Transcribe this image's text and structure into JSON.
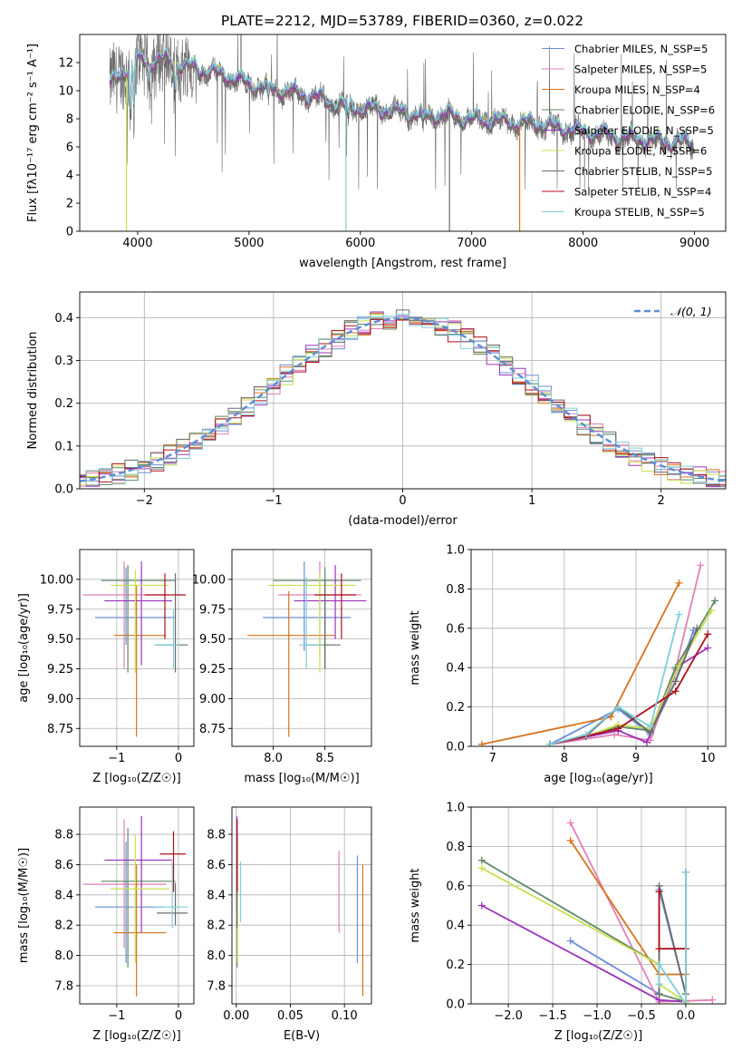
{
  "figure_title": "PLATE=2212, MJD=53789, FIBERID=0360, z=0.022",
  "chart_data": [
    {
      "id": "spectrum",
      "type": "line",
      "xlabel": "wavelength [Angstrom, rest frame]",
      "ylabel": "Flux [fλ10⁻¹⁷ erg cm⁻² s⁻¹ A⁻¹]",
      "xlim": [
        3480,
        9280
      ],
      "ylim": [
        0,
        14
      ],
      "xticks": [
        "4000",
        "5000",
        "6000",
        "7000",
        "8000",
        "9000"
      ],
      "yticks": [
        "0",
        "2",
        "4",
        "6",
        "8",
        "10",
        "12"
      ],
      "grid": false,
      "legend_position": "top-right",
      "legend": [
        "Chabrier MILES, N_SSP=5",
        "Salpeter MILES, N_SSP=5",
        "Kroupa MILES, N_SSP=4",
        "Chabrier ELODIE, N_SSP=6",
        "Salpeter ELODIE, N_SSP=5",
        "Kroupa ELODIE, N_SSP=6",
        "Chabrier STELIB, N_SSP=5",
        "Salpeter STELIB, N_SSP=4",
        "Kroupa STELIB, N_SSP=5"
      ],
      "continuum": {
        "wavelength": [
          3750,
          3900,
          4000,
          4100,
          4200,
          4400,
          4600,
          4800,
          5000,
          5200,
          5400,
          5600,
          5800,
          6000,
          6200,
          6400,
          6600,
          6800,
          7000,
          7200,
          7400,
          7600,
          7800,
          8000,
          8200,
          8400,
          8600,
          8800,
          9000
        ],
        "flux": [
          10.3,
          11.5,
          12.1,
          11.9,
          12.2,
          11.8,
          11.4,
          11.0,
          10.4,
          10.1,
          9.8,
          9.5,
          9.0,
          8.7,
          8.6,
          8.4,
          8.2,
          8.2,
          7.9,
          7.8,
          7.7,
          7.6,
          7.3,
          7.0,
          6.8,
          6.6,
          6.4,
          6.3,
          6.2
        ]
      }
    },
    {
      "id": "residuals",
      "type": "step",
      "xlabel": "(data-model)/error",
      "ylabel": "Normed distribution",
      "xlim": [
        -2.5,
        2.5
      ],
      "ylim": [
        0,
        0.46
      ],
      "xticks": [
        "−2",
        "−1",
        "0",
        "1",
        "2"
      ],
      "yticks": [
        "0.0",
        "0.1",
        "0.2",
        "0.3",
        "0.4"
      ],
      "grid": true,
      "legend_position": "top-right",
      "legend": [
        "𝒩(0, 1)"
      ],
      "bin_width": 0.1,
      "reference_curve": "gaussian N(0,1)"
    },
    {
      "id": "age_vs_Z",
      "type": "errorbar",
      "xlabel": "Z [log₁₀(Z/Z☉)]",
      "ylabel": "age  [log₁₀(age/yr)]",
      "xlim": [
        -1.6,
        0.25
      ],
      "ylim": [
        8.6,
        10.25
      ],
      "xticks": [
        "−1",
        "0"
      ],
      "yticks": [
        "8.75",
        "9.00",
        "9.25",
        "9.50",
        "9.75",
        "10.00"
      ],
      "grid": true,
      "points": [
        {
          "x": -0.85,
          "x_lo": -1.35,
          "x_hi": -0.05,
          "y": 9.68,
          "y_lo": 9.45,
          "y_hi": 10.1
        },
        {
          "x": -0.88,
          "x_lo": -1.55,
          "x_hi": -0.2,
          "y": 9.87,
          "y_lo": 9.25,
          "y_hi": 10.15
        },
        {
          "x": -0.68,
          "x_lo": -1.05,
          "x_hi": -0.2,
          "y": 9.53,
          "y_lo": 8.68,
          "y_hi": 9.95
        },
        {
          "x": -0.82,
          "x_lo": -1.25,
          "x_hi": -0.05,
          "y": 9.99,
          "y_lo": 9.22,
          "y_hi": 10.12
        },
        {
          "x": -0.6,
          "x_lo": -1.2,
          "x_hi": -0.1,
          "y": 9.82,
          "y_lo": 9.28,
          "y_hi": 10.15
        },
        {
          "x": -0.7,
          "x_lo": -1.1,
          "x_hi": -0.15,
          "y": 9.95,
          "y_lo": 9.22,
          "y_hi": 10.08
        },
        {
          "x": -0.05,
          "x_lo": -0.35,
          "x_hi": 0.15,
          "y": 9.45,
          "y_lo": 9.22,
          "y_hi": 10.05
        },
        {
          "x": -0.22,
          "x_lo": -0.55,
          "x_hi": 0.12,
          "y": 9.87,
          "y_lo": 9.5,
          "y_hi": 10.05
        },
        {
          "x": -0.08,
          "x_lo": -0.4,
          "x_hi": 0.02,
          "y": 9.45,
          "y_lo": 9.25,
          "y_hi": 9.75
        }
      ]
    },
    {
      "id": "age_vs_mass",
      "type": "errorbar",
      "xlabel": "mass [log₁₀(M/M☉)]",
      "ylabel": "",
      "xlim": [
        7.6,
        8.95
      ],
      "ylim": [
        8.6,
        10.25
      ],
      "xticks": [
        "8.0",
        "8.5"
      ],
      "yticks": [
        "8.75",
        "9.00",
        "9.25",
        "9.50",
        "9.75",
        "10.00"
      ],
      "grid": true,
      "points": [
        {
          "x": 8.3,
          "x_lo": 7.9,
          "x_hi": 8.75,
          "y": 9.68,
          "y_lo": 9.4,
          "y_hi": 10.15
        },
        {
          "x": 8.45,
          "x_lo": 8.05,
          "x_hi": 8.85,
          "y": 9.87,
          "y_lo": 9.35,
          "y_hi": 10.15
        },
        {
          "x": 8.15,
          "x_lo": 7.75,
          "x_hi": 8.6,
          "y": 9.53,
          "y_lo": 8.68,
          "y_hi": 9.9
        },
        {
          "x": 8.5,
          "x_lo": 8.0,
          "x_hi": 8.85,
          "y": 9.99,
          "y_lo": 9.25,
          "y_hi": 10.1
        },
        {
          "x": 8.6,
          "x_lo": 8.2,
          "x_hi": 8.9,
          "y": 9.82,
          "y_lo": 9.5,
          "y_hi": 10.12
        },
        {
          "x": 8.45,
          "x_lo": 7.95,
          "x_hi": 8.8,
          "y": 9.95,
          "y_lo": 9.22,
          "y_hi": 10.05
        },
        {
          "x": 8.5,
          "x_lo": 8.3,
          "x_hi": 8.65,
          "y": 9.45,
          "y_lo": 9.25,
          "y_hi": 10.0
        },
        {
          "x": 8.66,
          "x_lo": 8.4,
          "x_hi": 8.8,
          "y": 9.87,
          "y_lo": 9.5,
          "y_hi": 10.05
        },
        {
          "x": 8.32,
          "x_lo": 8.25,
          "x_hi": 8.48,
          "y": 9.45,
          "y_lo": 9.25,
          "y_hi": 10.02
        }
      ]
    },
    {
      "id": "massweight_vs_age",
      "type": "line",
      "xlabel": "age  [log₁₀(age/yr)]",
      "ylabel": "mass weight",
      "xlim": [
        6.7,
        10.25
      ],
      "ylim": [
        0,
        1.0
      ],
      "xticks": [
        "7",
        "8",
        "9",
        "10"
      ],
      "yticks": [
        "0.0",
        "0.2",
        "0.4",
        "0.6",
        "0.8",
        "1.0"
      ],
      "grid": true,
      "series": [
        {
          "x": [
            7.8,
            8.75,
            9.2,
            9.55,
            9.8
          ],
          "y": [
            0.01,
            0.19,
            0.06,
            0.33,
            0.59
          ]
        },
        {
          "x": [
            7.8,
            8.7,
            9.2,
            9.55,
            9.9
          ],
          "y": [
            0.01,
            0.06,
            0.03,
            0.39,
            0.92
          ]
        },
        {
          "x": [
            6.85,
            8.65,
            9.6
          ],
          "y": [
            0.01,
            0.15,
            0.83
          ]
        },
        {
          "x": [
            7.8,
            8.3,
            8.75,
            9.2,
            9.55,
            10.1
          ],
          "y": [
            0.01,
            0.05,
            0.1,
            0.08,
            0.4,
            0.74
          ]
        },
        {
          "x": [
            7.8,
            8.75,
            9.15,
            9.6,
            10.0
          ],
          "y": [
            0.01,
            0.08,
            0.02,
            0.41,
            0.5
          ]
        },
        {
          "x": [
            7.8,
            8.3,
            8.75,
            9.2,
            9.6,
            10.05
          ],
          "y": [
            0.01,
            0.05,
            0.11,
            0.09,
            0.41,
            0.69
          ]
        },
        {
          "x": [
            7.8,
            8.3,
            8.75,
            9.2,
            9.55,
            9.85
          ],
          "y": [
            0.01,
            0.05,
            0.2,
            0.07,
            0.33,
            0.6
          ]
        },
        {
          "x": [
            7.8,
            8.75,
            9.55,
            10.0
          ],
          "y": [
            0.01,
            0.09,
            0.28,
            0.57
          ]
        },
        {
          "x": [
            7.8,
            8.3,
            8.75,
            9.2,
            9.6
          ],
          "y": [
            0.01,
            0.06,
            0.2,
            0.1,
            0.67
          ]
        }
      ]
    },
    {
      "id": "mass_vs_Z",
      "type": "errorbar",
      "xlabel": "Z [log₁₀(Z/Z☉)]",
      "ylabel": "mass [log₁₀(M/M☉)]",
      "xlim": [
        -1.6,
        0.25
      ],
      "ylim": [
        7.68,
        8.98
      ],
      "xticks": [
        "−1",
        "0"
      ],
      "yticks": [
        "7.8",
        "8.0",
        "8.2",
        "8.4",
        "8.6",
        "8.8"
      ],
      "grid": true,
      "points": [
        {
          "x": -0.85,
          "x_lo": -1.35,
          "x_hi": -0.25,
          "y": 8.32,
          "y_lo": 7.95,
          "y_hi": 8.75
        },
        {
          "x": -0.88,
          "x_lo": -1.55,
          "x_hi": -0.2,
          "y": 8.47,
          "y_lo": 8.05,
          "y_hi": 8.9
        },
        {
          "x": -0.68,
          "x_lo": -1.05,
          "x_hi": -0.2,
          "y": 8.15,
          "y_lo": 7.73,
          "y_hi": 8.6
        },
        {
          "x": -0.82,
          "x_lo": -1.25,
          "x_hi": -0.05,
          "y": 8.49,
          "y_lo": 7.92,
          "y_hi": 8.84
        },
        {
          "x": -0.6,
          "x_lo": -1.2,
          "x_hi": -0.1,
          "y": 8.63,
          "y_lo": 8.15,
          "y_hi": 8.92
        },
        {
          "x": -0.7,
          "x_lo": -1.1,
          "x_hi": -0.15,
          "y": 8.44,
          "y_lo": 7.95,
          "y_hi": 8.8
        },
        {
          "x": -0.05,
          "x_lo": -0.35,
          "x_hi": 0.15,
          "y": 8.28,
          "y_lo": 8.2,
          "y_hi": 8.48
        },
        {
          "x": -0.08,
          "x_lo": -0.3,
          "x_hi": 0.12,
          "y": 8.67,
          "y_lo": 8.42,
          "y_hi": 8.82
        },
        {
          "x": -0.1,
          "x_lo": -0.4,
          "x_hi": 0.15,
          "y": 8.32,
          "y_lo": 8.18,
          "y_hi": 8.62
        }
      ]
    },
    {
      "id": "mass_vs_EBV",
      "type": "errorbar",
      "xlabel": "E(B-V)",
      "ylabel": "",
      "xlim": [
        -0.004,
        0.125
      ],
      "ylim": [
        7.68,
        8.98
      ],
      "xticks": [
        "0.00",
        "0.05",
        "0.10"
      ],
      "yticks": [
        "7.8",
        "8.0",
        "8.2",
        "8.4",
        "8.6",
        "8.8"
      ],
      "grid": true,
      "points": [
        {
          "x": 0.112,
          "y_lo": 7.95,
          "y_hi": 8.66
        },
        {
          "x": 0.095,
          "y_lo": 8.15,
          "y_hi": 8.69
        },
        {
          "x": 0.117,
          "y_lo": 7.73,
          "y_hi": 8.6
        },
        {
          "x": 0.0008,
          "y_lo": 7.92,
          "y_hi": 8.81
        },
        {
          "x": 0.0005,
          "y_lo": 8.3,
          "y_hi": 8.92
        },
        {
          "x": 0.0012,
          "y_lo": 7.95,
          "y_hi": 8.77
        },
        {
          "x": 0.0006,
          "y_lo": 8.18,
          "y_hi": 8.48
        },
        {
          "x": 0.0009,
          "y_lo": 8.42,
          "y_hi": 8.9
        },
        {
          "x": 0.004,
          "y_lo": 8.22,
          "y_hi": 8.62
        }
      ]
    },
    {
      "id": "massweight_vs_Z",
      "type": "line",
      "xlabel": "Z [log₁₀(Z/Z☉)]",
      "ylabel": "mass weight",
      "xlim": [
        -2.42,
        0.45
      ],
      "ylim": [
        0,
        1.0
      ],
      "xticks": [
        "−2.0",
        "−1.5",
        "−1.0",
        "−0.5",
        "0.0"
      ],
      "yticks": [
        "0.0",
        "0.2",
        "0.4",
        "0.6",
        "0.8",
        "1.0"
      ],
      "grid": true,
      "series": [
        {
          "x": [
            -1.3,
            -0.3,
            -0.3,
            0.0,
            0.0
          ],
          "y": [
            0.32,
            0.05,
            0.58,
            0.05,
            0.67
          ]
        },
        {
          "x": [
            -1.3,
            -0.3,
            0.3
          ],
          "y": [
            0.92,
            0.01,
            0.02
          ]
        },
        {
          "x": [
            -1.3,
            -0.3,
            0.0
          ],
          "y": [
            0.83,
            0.15,
            0.15
          ]
        },
        {
          "x": [
            -2.3,
            -0.3,
            -0.3,
            0.0
          ],
          "y": [
            0.73,
            0.2,
            0.05,
            0.01
          ]
        },
        {
          "x": [
            -2.3,
            -0.3,
            0.0
          ],
          "y": [
            0.5,
            0.02,
            0.01
          ]
        },
        {
          "x": [
            -2.3,
            -0.3,
            -0.3,
            0.0
          ],
          "y": [
            0.69,
            0.2,
            0.1,
            0.01
          ]
        },
        {
          "x": [
            -0.3,
            -0.3,
            0.0,
            0.0
          ],
          "y": [
            0.05,
            0.6,
            0.05,
            0.67
          ]
        },
        {
          "x": [
            -0.3,
            -0.3,
            0.0
          ],
          "y": [
            0.57,
            0.28,
            0.28
          ]
        },
        {
          "x": [
            -0.3,
            -0.3,
            0.0,
            0.0
          ],
          "y": [
            0.1,
            0.2,
            0.0,
            0.67
          ]
        }
      ]
    }
  ],
  "series_colors": [
    "#6a8fd8",
    "#e37fb7",
    "#d9721c",
    "#5f8865",
    "#9b33bb",
    "#c8e04f",
    "#6b6b6b",
    "#b00f1c",
    "#7dcfd8"
  ]
}
